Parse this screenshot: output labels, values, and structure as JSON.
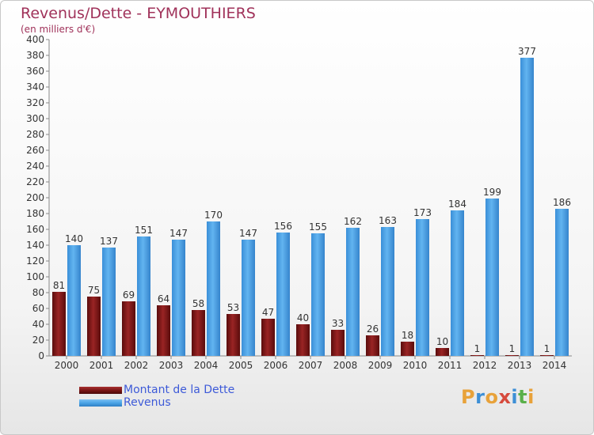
{
  "header": {
    "title": "Revenus/Dette - EYMOUTHIERS",
    "subtitle": "(en milliers d'€)"
  },
  "colors": {
    "debt": "#7a1616",
    "revenue": "#4aa3e6",
    "title": "#a0325a",
    "legend_text": "#3d5ad8"
  },
  "chart_data": {
    "type": "bar",
    "title": "Revenus/Dette - EYMOUTHIERS",
    "subtitle": "(en milliers d'€)",
    "categories": [
      "2000",
      "2001",
      "2002",
      "2003",
      "2004",
      "2005",
      "2006",
      "2007",
      "2008",
      "2009",
      "2010",
      "2011",
      "2012",
      "2013",
      "2014"
    ],
    "series": [
      {
        "name": "Montant de la Dette",
        "values": [
          81,
          75,
          69,
          64,
          58,
          53,
          47,
          40,
          33,
          26,
          18,
          10,
          1,
          1,
          1
        ]
      },
      {
        "name": "Revenus",
        "values": [
          140,
          137,
          151,
          147,
          170,
          147,
          156,
          155,
          162,
          163,
          173,
          184,
          199,
          377,
          186
        ]
      }
    ],
    "ylim": [
      0,
      400
    ],
    "ytick_step": 20,
    "grid": false,
    "legend_position": "bottom-left"
  },
  "legend": {
    "items": [
      {
        "label": "Montant de la Dette",
        "color": "#7a1616"
      },
      {
        "label": "Revenus",
        "color": "#4aa3e6"
      }
    ]
  },
  "logo": {
    "letters": [
      "P",
      "r",
      "o",
      "x",
      "i",
      "t",
      "i"
    ],
    "colors": [
      "#e8a23a",
      "#3d8fd6",
      "#e8a23a",
      "#d64a3d",
      "#3d8fd6",
      "#5ab04a",
      "#e8a23a"
    ]
  }
}
